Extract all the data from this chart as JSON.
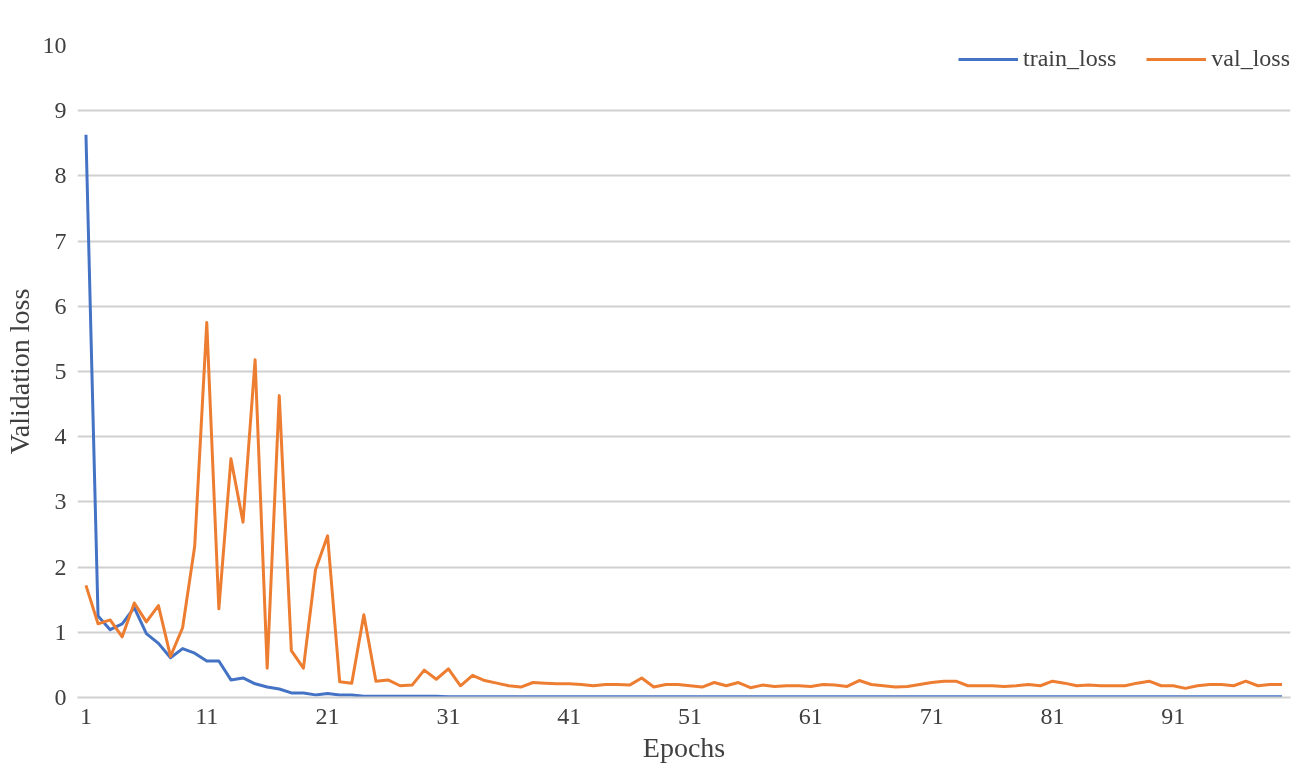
{
  "chart_data": {
    "type": "line",
    "xlabel": "Epochs",
    "ylabel": "Validation loss",
    "x": [
      1,
      2,
      3,
      4,
      5,
      6,
      7,
      8,
      9,
      10,
      11,
      12,
      13,
      14,
      15,
      16,
      17,
      18,
      19,
      20,
      21,
      22,
      23,
      24,
      25,
      26,
      27,
      28,
      29,
      30,
      31,
      32,
      33,
      34,
      35,
      36,
      37,
      38,
      39,
      40,
      41,
      42,
      43,
      44,
      45,
      46,
      47,
      48,
      49,
      50,
      51,
      52,
      53,
      54,
      55,
      56,
      57,
      58,
      59,
      60,
      61,
      62,
      63,
      64,
      65,
      66,
      67,
      68,
      69,
      70,
      71,
      72,
      73,
      74,
      75,
      76,
      77,
      78,
      79,
      80,
      81,
      82,
      83,
      84,
      85,
      86,
      87,
      88,
      89,
      90,
      91,
      92,
      93,
      94,
      95,
      96,
      97,
      98,
      99,
      100
    ],
    "series": [
      {
        "name": "train_loss",
        "color": "#4472c4",
        "values": [
          8.63,
          1.25,
          1.04,
          1.13,
          1.38,
          0.98,
          0.83,
          0.61,
          0.75,
          0.68,
          0.56,
          0.56,
          0.27,
          0.3,
          0.21,
          0.16,
          0.13,
          0.07,
          0.07,
          0.04,
          0.06,
          0.04,
          0.04,
          0.02,
          0.02,
          0.02,
          0.02,
          0.02,
          0.02,
          0.02,
          0.01,
          0.01,
          0.01,
          0.01,
          0.01,
          0.01,
          0.01,
          0.01,
          0.01,
          0.01,
          0.01,
          0.01,
          0.01,
          0.01,
          0.01,
          0.01,
          0.01,
          0.01,
          0.01,
          0.01,
          0.01,
          0.01,
          0.01,
          0.01,
          0.01,
          0.01,
          0.01,
          0.01,
          0.01,
          0.01,
          0.01,
          0.01,
          0.01,
          0.01,
          0.01,
          0.01,
          0.01,
          0.01,
          0.01,
          0.01,
          0.01,
          0.01,
          0.01,
          0.01,
          0.01,
          0.01,
          0.01,
          0.01,
          0.01,
          0.01,
          0.01,
          0.01,
          0.01,
          0.01,
          0.01,
          0.01,
          0.01,
          0.01,
          0.01,
          0.01,
          0.01,
          0.01,
          0.01,
          0.01,
          0.01,
          0.01,
          0.01,
          0.01,
          0.01,
          0.01
        ]
      },
      {
        "name": "val_loss",
        "color": "#ed7d31",
        "values": [
          1.72,
          1.13,
          1.19,
          0.93,
          1.45,
          1.16,
          1.41,
          0.63,
          1.07,
          2.32,
          5.75,
          1.36,
          3.66,
          2.69,
          5.18,
          0.45,
          4.63,
          0.72,
          0.45,
          1.96,
          2.48,
          0.24,
          0.22,
          1.27,
          0.25,
          0.27,
          0.18,
          0.19,
          0.42,
          0.28,
          0.44,
          0.18,
          0.34,
          0.26,
          0.22,
          0.18,
          0.16,
          0.23,
          0.22,
          0.21,
          0.21,
          0.2,
          0.18,
          0.2,
          0.2,
          0.19,
          0.3,
          0.16,
          0.2,
          0.2,
          0.18,
          0.16,
          0.23,
          0.18,
          0.23,
          0.15,
          0.19,
          0.17,
          0.18,
          0.18,
          0.17,
          0.2,
          0.19,
          0.17,
          0.26,
          0.2,
          0.18,
          0.16,
          0.17,
          0.2,
          0.23,
          0.25,
          0.25,
          0.18,
          0.18,
          0.18,
          0.17,
          0.18,
          0.2,
          0.18,
          0.25,
          0.22,
          0.18,
          0.19,
          0.18,
          0.18,
          0.18,
          0.22,
          0.25,
          0.18,
          0.18,
          0.14,
          0.18,
          0.2,
          0.2,
          0.18,
          0.25,
          0.18,
          0.2,
          0.2
        ]
      }
    ],
    "xlim": [
      0.3,
      100.7
    ],
    "xticks": [
      1,
      11,
      21,
      31,
      41,
      51,
      61,
      71,
      81,
      91
    ],
    "ylim": [
      0,
      10
    ],
    "yticks": [
      0,
      1,
      2,
      3,
      4,
      5,
      6,
      7,
      8,
      9,
      10
    ],
    "grid": "y",
    "legend": "top right",
    "marker": "none",
    "line_style": "solid"
  }
}
